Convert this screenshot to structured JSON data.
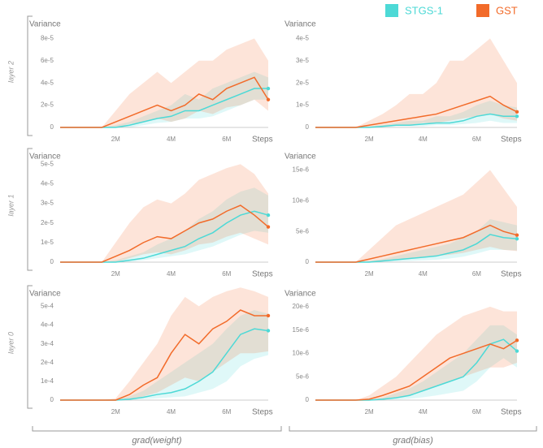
{
  "row_labels": [
    "layer 2",
    "layer 1",
    "layer 0"
  ],
  "column_labels": [
    "grad(weight)",
    "grad(bias)"
  ],
  "chart_data": [
    {
      "type": "line",
      "y_label": "Variance",
      "x_label": "Steps",
      "x": [
        0,
        1500000,
        2000000,
        2500000,
        3000000,
        3500000,
        4000000,
        4500000,
        5000000,
        5500000,
        6000000,
        6500000,
        7000000,
        7500000
      ],
      "xlim": [
        0,
        7500000
      ],
      "xticks": [
        {
          "value": 2000000,
          "label": "2M"
        },
        {
          "value": 4000000,
          "label": "4M"
        },
        {
          "value": 6000000,
          "label": "6M"
        }
      ],
      "ylim": [
        0,
        0.0001
      ],
      "yticks": [
        0,
        {
          "value": 2e-05,
          "label": "2e-5"
        },
        {
          "value": 4e-05,
          "label": "4e-5"
        },
        {
          "value": 6e-05,
          "label": "6e-5"
        },
        {
          "value": 8e-05,
          "label": "8e-5"
        }
      ],
      "series": [
        {
          "name": "STGS-1",
          "color": "#4dd9d6",
          "values": [
            0,
            0,
            0,
            2e-06,
            5e-06,
            8e-06,
            1e-05,
            1.5e-05,
            1.5e-05,
            2e-05,
            2.5e-05,
            3e-05,
            3.5e-05,
            3.5e-05
          ],
          "lower": [
            0,
            0,
            0,
            0,
            2e-06,
            4e-06,
            5e-06,
            8e-06,
            8e-06,
            1e-05,
            1.5e-05,
            2e-05,
            2.5e-05,
            2.5e-05
          ],
          "upper": [
            0,
            0,
            2e-06,
            5e-06,
            1e-05,
            1.5e-05,
            2e-05,
            3e-05,
            2.5e-05,
            3.5e-05,
            4e-05,
            4.5e-05,
            5e-05,
            4.5e-05
          ]
        },
        {
          "name": "GST",
          "color": "#f26b2a",
          "values": [
            0,
            0,
            5e-06,
            1e-05,
            1.5e-05,
            2e-05,
            1.5e-05,
            2e-05,
            3e-05,
            2.5e-05,
            3.5e-05,
            4e-05,
            4.5e-05,
            2.5e-05
          ],
          "lower": [
            0,
            0,
            0,
            3e-06,
            5e-06,
            8e-06,
            5e-06,
            8e-06,
            1.5e-05,
            1.2e-05,
            1.8e-05,
            2e-05,
            2.5e-05,
            1.5e-05
          ],
          "upper": [
            0,
            0,
            1.5e-05,
            3e-05,
            4e-05,
            5e-05,
            4e-05,
            5e-05,
            6e-05,
            6e-05,
            7e-05,
            7.5e-05,
            8e-05,
            6e-05
          ]
        }
      ]
    },
    {
      "type": "line",
      "y_label": "Variance",
      "x_label": "Steps",
      "x": [
        0,
        1500000,
        2000000,
        2500000,
        3000000,
        3500000,
        4000000,
        4500000,
        5000000,
        5500000,
        6000000,
        6500000,
        7000000,
        7500000
      ],
      "xlim": [
        0,
        7500000
      ],
      "xticks": [
        {
          "value": 2000000,
          "label": "2M"
        },
        {
          "value": 4000000,
          "label": "4M"
        },
        {
          "value": 6000000,
          "label": "6M"
        }
      ],
      "ylim": [
        0,
        5e-05
      ],
      "yticks": [
        0,
        {
          "value": 1e-05,
          "label": "1e-5"
        },
        {
          "value": 2e-05,
          "label": "2e-5"
        },
        {
          "value": 3e-05,
          "label": "3e-5"
        },
        {
          "value": 4e-05,
          "label": "4e-5"
        }
      ],
      "series": [
        {
          "name": "STGS-1",
          "color": "#4dd9d6",
          "values": [
            0,
            0,
            0,
            5e-07,
            1e-06,
            1e-06,
            1.5e-06,
            2e-06,
            2e-06,
            3e-06,
            5e-06,
            6e-06,
            5e-06,
            5e-06
          ],
          "lower": [
            0,
            0,
            0,
            0,
            5e-07,
            5e-07,
            5e-07,
            1e-06,
            1e-06,
            1.5e-06,
            2e-06,
            3e-06,
            2e-06,
            2e-06
          ],
          "upper": [
            0,
            0,
            5e-07,
            1e-06,
            2e-06,
            3e-06,
            3e-06,
            5e-06,
            5e-06,
            7e-06,
            1e-05,
            1.2e-05,
            1e-05,
            9e-06
          ]
        },
        {
          "name": "GST",
          "color": "#f26b2a",
          "values": [
            0,
            0,
            1e-06,
            2e-06,
            3e-06,
            4e-06,
            5e-06,
            6e-06,
            8e-06,
            1e-05,
            1.2e-05,
            1.4e-05,
            1e-05,
            7e-06
          ],
          "lower": [
            0,
            0,
            0,
            5e-07,
            1e-06,
            1e-06,
            2e-06,
            2e-06,
            3e-06,
            4e-06,
            5e-06,
            6e-06,
            4e-06,
            3e-06
          ],
          "upper": [
            0,
            0,
            3e-06,
            6e-06,
            1e-05,
            1.5e-05,
            1.5e-05,
            2e-05,
            3e-05,
            3e-05,
            3.5e-05,
            4e-05,
            3e-05,
            2e-05
          ]
        }
      ]
    },
    {
      "type": "line",
      "y_label": "Variance",
      "x_label": "Steps",
      "x": [
        0,
        1500000,
        2000000,
        2500000,
        3000000,
        3500000,
        4000000,
        4500000,
        5000000,
        5500000,
        6000000,
        6500000,
        7000000,
        7500000
      ],
      "xlim": [
        0,
        7500000
      ],
      "xticks": [
        {
          "value": 2000000,
          "label": "2M"
        },
        {
          "value": 4000000,
          "label": "4M"
        },
        {
          "value": 6000000,
          "label": "6M"
        }
      ],
      "ylim": [
        0,
        5.8e-05
      ],
      "yticks": [
        0,
        {
          "value": 1e-05,
          "label": "1e-5"
        },
        {
          "value": 2e-05,
          "label": "2e-5"
        },
        {
          "value": 3e-05,
          "label": "3e-5"
        },
        {
          "value": 4e-05,
          "label": "4e-5"
        },
        {
          "value": 5e-05,
          "label": "5e-5"
        }
      ],
      "series": [
        {
          "name": "STGS-1",
          "color": "#4dd9d6",
          "values": [
            0,
            0,
            0,
            1e-06,
            2e-06,
            4e-06,
            6e-06,
            8e-06,
            1.2e-05,
            1.5e-05,
            2e-05,
            2.4e-05,
            2.6e-05,
            2.4e-05
          ],
          "lower": [
            0,
            0,
            0,
            0,
            1e-06,
            2e-06,
            3e-06,
            4e-06,
            6e-06,
            8e-06,
            1.1e-05,
            1.4e-05,
            1.6e-05,
            1.5e-05
          ],
          "upper": [
            0,
            0,
            1e-06,
            3e-06,
            5e-06,
            9e-06,
            1.2e-05,
            1.6e-05,
            2.2e-05,
            2.6e-05,
            3.2e-05,
            3.6e-05,
            3.8e-05,
            3.4e-05
          ]
        },
        {
          "name": "GST",
          "color": "#f26b2a",
          "values": [
            0,
            0,
            3e-06,
            6e-06,
            1e-05,
            1.3e-05,
            1.2e-05,
            1.6e-05,
            2e-05,
            2.2e-05,
            2.6e-05,
            2.9e-05,
            2.4e-05,
            1.8e-05
          ],
          "lower": [
            0,
            0,
            0,
            2e-06,
            4e-06,
            5e-06,
            4e-06,
            6e-06,
            9e-06,
            1e-05,
            1.3e-05,
            1.5e-05,
            1.2e-05,
            9e-06
          ],
          "upper": [
            0,
            0,
            1e-05,
            2e-05,
            2.8e-05,
            3.2e-05,
            3e-05,
            3.5e-05,
            4.2e-05,
            4.5e-05,
            4.8e-05,
            5e-05,
            4.5e-05,
            3.5e-05
          ]
        }
      ]
    },
    {
      "type": "line",
      "y_label": "Variance",
      "x_label": "Steps",
      "x": [
        0,
        1500000,
        2000000,
        2500000,
        3000000,
        3500000,
        4000000,
        4500000,
        5000000,
        5500000,
        6000000,
        6500000,
        7000000,
        7500000
      ],
      "xlim": [
        0,
        7500000
      ],
      "xticks": [
        {
          "value": 2000000,
          "label": "2M"
        },
        {
          "value": 4000000,
          "label": "4M"
        },
        {
          "value": 6000000,
          "label": "6M"
        }
      ],
      "ylim": [
        0,
        1.85e-05
      ],
      "yticks": [
        0,
        {
          "value": 5e-06,
          "label": "5e-6"
        },
        {
          "value": 1e-05,
          "label": "10e-6"
        },
        {
          "value": 1.5e-05,
          "label": "15e-6"
        }
      ],
      "series": [
        {
          "name": "STGS-1",
          "color": "#4dd9d6",
          "values": [
            0,
            0,
            0,
            2e-07,
            4e-07,
            6e-07,
            8e-07,
            1e-06,
            1.5e-06,
            2e-06,
            3e-06,
            4.5e-06,
            4e-06,
            3.8e-06
          ],
          "lower": [
            0,
            0,
            0,
            0,
            1e-07,
            2e-07,
            3e-07,
            4e-07,
            6e-07,
            9e-07,
            1.4e-06,
            2e-06,
            2e-06,
            1.9e-06
          ],
          "upper": [
            0,
            0,
            2e-07,
            5e-07,
            1e-06,
            1.5e-06,
            2e-06,
            2.5e-06,
            3e-06,
            4e-06,
            5e-06,
            7e-06,
            6.5e-06,
            6e-06
          ]
        },
        {
          "name": "GST",
          "color": "#f26b2a",
          "values": [
            0,
            0,
            5e-07,
            1e-06,
            1.5e-06,
            2e-06,
            2.5e-06,
            3e-06,
            3.5e-06,
            4e-06,
            5e-06,
            6e-06,
            5e-06,
            4.4e-06
          ],
          "lower": [
            0,
            0,
            0,
            2e-07,
            4e-07,
            6e-07,
            8e-07,
            1e-06,
            1.2e-06,
            1.5e-06,
            2e-06,
            2.5e-06,
            2e-06,
            1.8e-06
          ],
          "upper": [
            0,
            0,
            2e-06,
            4e-06,
            6e-06,
            7e-06,
            8e-06,
            9e-06,
            1e-05,
            1.1e-05,
            1.3e-05,
            1.5e-05,
            1.2e-05,
            9e-06
          ]
        }
      ]
    },
    {
      "type": "line",
      "y_label": "Variance",
      "x_label": "Steps",
      "x": [
        0,
        1500000,
        2000000,
        2500000,
        3000000,
        3500000,
        4000000,
        4500000,
        5000000,
        5500000,
        6000000,
        6500000,
        7000000,
        7500000
      ],
      "xlim": [
        0,
        7500000
      ],
      "xticks": [
        {
          "value": 2000000,
          "label": "2M"
        },
        {
          "value": 4000000,
          "label": "4M"
        },
        {
          "value": 6000000,
          "label": "6M"
        }
      ],
      "ylim": [
        0,
        0.00061
      ],
      "yticks": [
        0,
        {
          "value": 0.0001,
          "label": "1e-4"
        },
        {
          "value": 0.0002,
          "label": "2e-4"
        },
        {
          "value": 0.0003,
          "label": "3e-4"
        },
        {
          "value": 0.0004,
          "label": "4e-4"
        },
        {
          "value": 0.0005,
          "label": "5e-4"
        }
      ],
      "series": [
        {
          "name": "STGS-1",
          "color": "#4dd9d6",
          "values": [
            0,
            0,
            0,
            5e-06,
            1.5e-05,
            3e-05,
            4e-05,
            6e-05,
            0.0001,
            0.00015,
            0.00025,
            0.00035,
            0.00038,
            0.00037
          ],
          "lower": [
            0,
            0,
            0,
            0,
            5e-06,
            1e-05,
            1.5e-05,
            2e-05,
            4e-05,
            6e-05,
            0.0001,
            0.00018,
            0.00022,
            0.00024
          ],
          "upper": [
            0,
            0,
            0,
            2e-05,
            5e-05,
            0.0001,
            0.00015,
            0.0002,
            0.00025,
            0.0003,
            0.00038,
            0.00045,
            0.00048,
            0.00046
          ]
        },
        {
          "name": "GST",
          "color": "#f26b2a",
          "values": [
            0,
            0,
            0,
            3e-05,
            8e-05,
            0.00012,
            0.00025,
            0.00035,
            0.0003,
            0.00038,
            0.00042,
            0.00048,
            0.00045,
            0.00045
          ],
          "lower": [
            0,
            0,
            0,
            5e-06,
            2e-05,
            4e-05,
            8e-05,
            0.00012,
            0.0001,
            0.00015,
            0.0002,
            0.00025,
            0.00025,
            0.00026
          ],
          "upper": [
            0,
            0,
            1e-05,
            0.0001,
            0.0002,
            0.0003,
            0.00045,
            0.00055,
            0.0005,
            0.00055,
            0.00058,
            0.0006,
            0.00058,
            0.00055
          ]
        }
      ]
    },
    {
      "type": "line",
      "y_label": "Variance",
      "x_label": "Steps",
      "x": [
        0,
        1500000,
        2000000,
        2500000,
        3000000,
        3500000,
        4000000,
        4500000,
        5000000,
        5500000,
        6000000,
        6500000,
        7000000,
        7500000
      ],
      "xlim": [
        0,
        7500000
      ],
      "xticks": [
        {
          "value": 2000000,
          "label": "2M"
        },
        {
          "value": 4000000,
          "label": "4M"
        },
        {
          "value": 6000000,
          "label": "6M"
        }
      ],
      "ylim": [
        0,
        2.45e-05
      ],
      "yticks": [
        0,
        {
          "value": 5e-06,
          "label": "5e-6"
        },
        {
          "value": 1e-05,
          "label": "10e-6"
        },
        {
          "value": 1.5e-05,
          "label": "15e-6"
        },
        {
          "value": 2e-05,
          "label": "20e-6"
        }
      ],
      "series": [
        {
          "name": "STGS-1",
          "color": "#4dd9d6",
          "values": [
            0,
            0,
            0,
            2e-07,
            5e-07,
            1e-06,
            2e-06,
            3e-06,
            4e-06,
            5e-06,
            8e-06,
            1.2e-05,
            1.3e-05,
            1.05e-05
          ],
          "lower": [
            0,
            0,
            0,
            0,
            1e-07,
            3e-07,
            6e-07,
            1e-06,
            1.5e-06,
            2e-06,
            4e-06,
            7e-06,
            9e-06,
            7e-06
          ],
          "upper": [
            0,
            0,
            0,
            5e-07,
            1.5e-06,
            2.5e-06,
            4e-06,
            6e-06,
            8e-06,
            1e-05,
            1.3e-05,
            1.6e-05,
            1.6e-05,
            1.4e-05
          ]
        },
        {
          "name": "GST",
          "color": "#f26b2a",
          "values": [
            0,
            0,
            2e-07,
            1e-06,
            2e-06,
            3e-06,
            5e-06,
            7e-06,
            9e-06,
            1e-05,
            1.1e-05,
            1.2e-05,
            1.1e-05,
            1.28e-05
          ],
          "lower": [
            0,
            0,
            0,
            2e-07,
            6e-07,
            1e-06,
            2e-06,
            3e-06,
            4e-06,
            5e-06,
            6e-06,
            7e-06,
            7e-06,
            8e-06
          ],
          "upper": [
            0,
            0,
            1e-06,
            3e-06,
            5e-06,
            8e-06,
            1.1e-05,
            1.4e-05,
            1.6e-05,
            1.8e-05,
            1.9e-05,
            2e-05,
            1.9e-05,
            1.9e-05
          ]
        }
      ]
    }
  ]
}
